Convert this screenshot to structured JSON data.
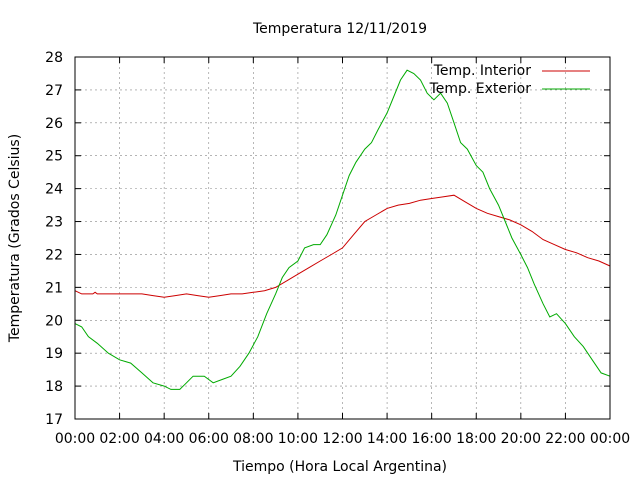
{
  "chart_data": {
    "type": "line",
    "title": "Temperatura 12/11/2019",
    "xlabel": "Tiempo (Hora Local Argentina)",
    "ylabel": "Temperatura (Grados Celsius)",
    "xlim": [
      0,
      24
    ],
    "ylim": [
      17,
      28
    ],
    "grid": true,
    "legend": "top-right",
    "x_tick_labels": [
      "00:00",
      "02:00",
      "04:00",
      "06:00",
      "08:00",
      "10:00",
      "12:00",
      "14:00",
      "16:00",
      "18:00",
      "20:00",
      "22:00",
      "00:00"
    ],
    "y_tick_labels": [
      "17",
      "18",
      "19",
      "20",
      "21",
      "22",
      "23",
      "24",
      "25",
      "26",
      "27",
      "28"
    ],
    "series": [
      {
        "name": "Temp. Interior",
        "color": "#cc0000",
        "points": [
          [
            0,
            20.9
          ],
          [
            0.3,
            20.8
          ],
          [
            0.8,
            20.8
          ],
          [
            0.9,
            20.85
          ],
          [
            1.0,
            20.8
          ],
          [
            2,
            20.8
          ],
          [
            3,
            20.8
          ],
          [
            3.5,
            20.75
          ],
          [
            4,
            20.7
          ],
          [
            4.5,
            20.75
          ],
          [
            5,
            20.8
          ],
          [
            5.5,
            20.75
          ],
          [
            6,
            20.7
          ],
          [
            6.5,
            20.75
          ],
          [
            7,
            20.8
          ],
          [
            7.5,
            20.8
          ],
          [
            8,
            20.85
          ],
          [
            8.5,
            20.9
          ],
          [
            9,
            21.0
          ],
          [
            9.5,
            21.2
          ],
          [
            10,
            21.4
          ],
          [
            10.5,
            21.6
          ],
          [
            11,
            21.8
          ],
          [
            11.5,
            22.0
          ],
          [
            12,
            22.2
          ],
          [
            12.5,
            22.6
          ],
          [
            13,
            23.0
          ],
          [
            13.5,
            23.2
          ],
          [
            14,
            23.4
          ],
          [
            14.5,
            23.5
          ],
          [
            15,
            23.55
          ],
          [
            15.5,
            23.65
          ],
          [
            16,
            23.7
          ],
          [
            16.5,
            23.75
          ],
          [
            17,
            23.8
          ],
          [
            17.5,
            23.6
          ],
          [
            18,
            23.4
          ],
          [
            18.5,
            23.25
          ],
          [
            19,
            23.15
          ],
          [
            19.5,
            23.05
          ],
          [
            20,
            22.9
          ],
          [
            20.5,
            22.7
          ],
          [
            21,
            22.45
          ],
          [
            21.5,
            22.3
          ],
          [
            22,
            22.15
          ],
          [
            22.5,
            22.05
          ],
          [
            23,
            21.9
          ],
          [
            23.5,
            21.8
          ],
          [
            24,
            21.65
          ]
        ]
      },
      {
        "name": "Temp. Exterior",
        "color": "#00aa00",
        "points": [
          [
            0,
            19.9
          ],
          [
            0.3,
            19.8
          ],
          [
            0.6,
            19.5
          ],
          [
            1,
            19.3
          ],
          [
            1.5,
            19.0
          ],
          [
            2,
            18.8
          ],
          [
            2.5,
            18.7
          ],
          [
            3,
            18.4
          ],
          [
            3.5,
            18.1
          ],
          [
            4,
            18.0
          ],
          [
            4.3,
            17.9
          ],
          [
            4.7,
            17.9
          ],
          [
            5,
            18.1
          ],
          [
            5.3,
            18.3
          ],
          [
            5.8,
            18.3
          ],
          [
            6.2,
            18.1
          ],
          [
            6.6,
            18.2
          ],
          [
            7,
            18.3
          ],
          [
            7.4,
            18.6
          ],
          [
            7.8,
            19.0
          ],
          [
            8.2,
            19.5
          ],
          [
            8.6,
            20.2
          ],
          [
            9,
            20.8
          ],
          [
            9.3,
            21.3
          ],
          [
            9.6,
            21.6
          ],
          [
            10,
            21.8
          ],
          [
            10.3,
            22.2
          ],
          [
            10.7,
            22.3
          ],
          [
            11,
            22.3
          ],
          [
            11.3,
            22.6
          ],
          [
            11.7,
            23.2
          ],
          [
            12,
            23.8
          ],
          [
            12.3,
            24.4
          ],
          [
            12.6,
            24.8
          ],
          [
            13,
            25.2
          ],
          [
            13.3,
            25.4
          ],
          [
            13.6,
            25.8
          ],
          [
            14,
            26.3
          ],
          [
            14.3,
            26.8
          ],
          [
            14.6,
            27.3
          ],
          [
            14.9,
            27.6
          ],
          [
            15.2,
            27.5
          ],
          [
            15.5,
            27.3
          ],
          [
            15.8,
            26.9
          ],
          [
            16.1,
            26.7
          ],
          [
            16.4,
            26.9
          ],
          [
            16.7,
            26.6
          ],
          [
            17,
            26.0
          ],
          [
            17.3,
            25.4
          ],
          [
            17.6,
            25.2
          ],
          [
            18,
            24.7
          ],
          [
            18.3,
            24.5
          ],
          [
            18.6,
            24.0
          ],
          [
            19,
            23.5
          ],
          [
            19.3,
            23.0
          ],
          [
            19.6,
            22.5
          ],
          [
            20,
            22.0
          ],
          [
            20.3,
            21.6
          ],
          [
            20.6,
            21.1
          ],
          [
            21,
            20.5
          ],
          [
            21.3,
            20.1
          ],
          [
            21.6,
            20.2
          ],
          [
            22,
            19.9
          ],
          [
            22.4,
            19.5
          ],
          [
            22.8,
            19.2
          ],
          [
            23.2,
            18.8
          ],
          [
            23.6,
            18.4
          ],
          [
            24,
            18.3
          ]
        ]
      }
    ]
  }
}
